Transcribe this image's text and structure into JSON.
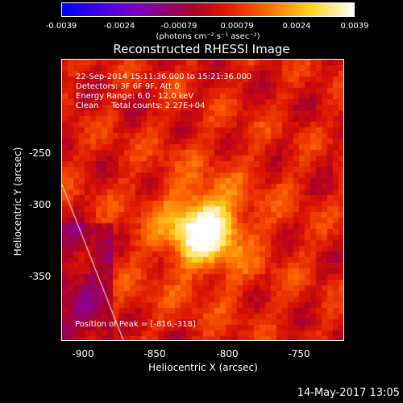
{
  "colorbar": {
    "ticks": [
      "-0.0039",
      "-0.0024",
      "-0.00079",
      "0.00079",
      "0.0024",
      "0.0039"
    ],
    "units": "(photons cm⁻² s⁻¹ asec⁻²)",
    "range": [
      -0.0039,
      0.0039
    ]
  },
  "title": "Reconstructed RHESSI Image",
  "info": {
    "time": "22-Sep-2014 15:11:36.000 to 15:21:36.000",
    "detectors": "Detectors: 3F 6F 9F, Att 0",
    "energy": "Energy Range: 6.0 - 12.0 keV",
    "clean": "Clean     Total counts: 2.27E+04"
  },
  "peak": "Position of Peak = [-816,-318]",
  "axes": {
    "x_title": "Heliocentric X (arcsec)",
    "y_title": "Heliocentric Y (arcsec)",
    "x_ticks": [
      "-900",
      "-850",
      "-800",
      "-750"
    ],
    "y_ticks": [
      "-250",
      "-300",
      "-350"
    ],
    "x_range": [
      -910,
      -720
    ],
    "y_range": [
      -395,
      -205
    ]
  },
  "timestamp": "14-May-2017 13:05",
  "colors": {
    "frame": "#ffffff",
    "background": "#000000"
  }
}
